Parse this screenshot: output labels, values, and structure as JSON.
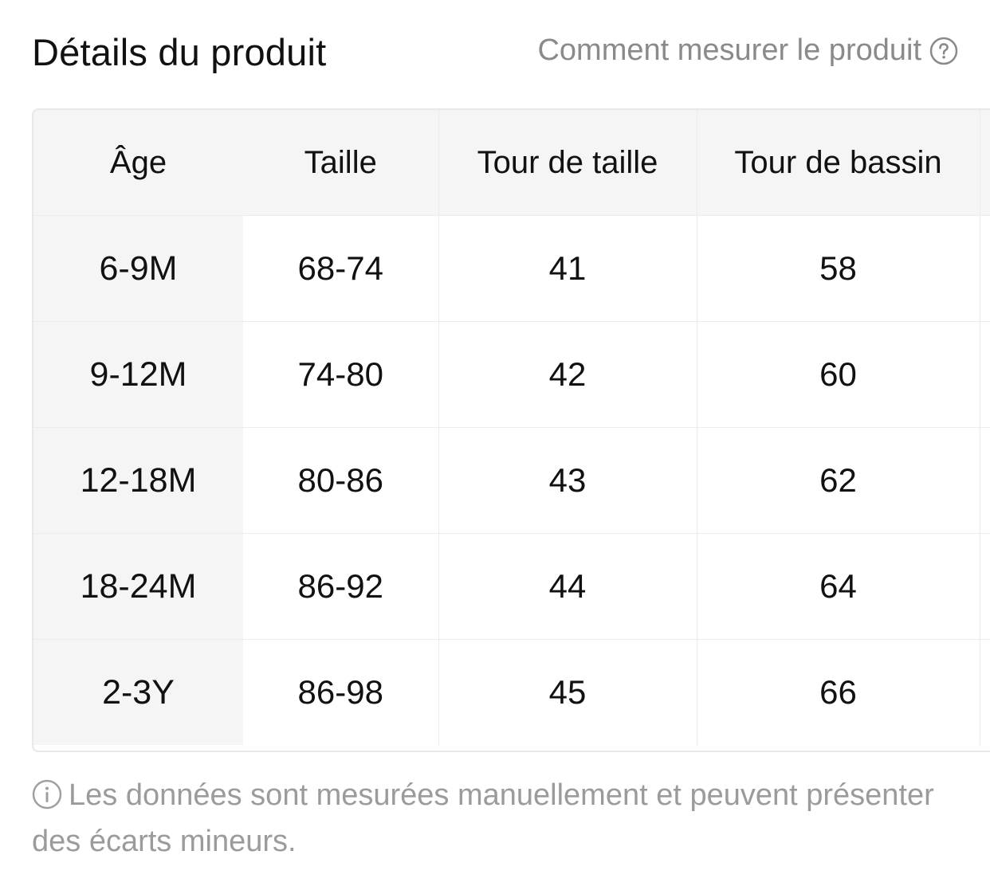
{
  "header": {
    "title": "Détails du produit",
    "measure_link": "Comment mesurer le produit",
    "measure_icon": "question-circle-icon"
  },
  "size_table": {
    "columns": [
      "Âge",
      "Taille",
      "Tour de taille",
      "Tour de bassin"
    ],
    "rows": [
      [
        "6-9M",
        "68-74",
        "41",
        "58"
      ],
      [
        "9-12M",
        "74-80",
        "42",
        "60"
      ],
      [
        "12-18M",
        "80-86",
        "43",
        "62"
      ],
      [
        "18-24M",
        "86-92",
        "44",
        "64"
      ],
      [
        "2-3Y",
        "86-98",
        "45",
        "66"
      ]
    ]
  },
  "note": {
    "icon": "info-circle-icon",
    "text": "Les données sont mesurées manuellement et peuvent présenter des écarts mineurs."
  },
  "colors": {
    "header_bg": "#f5f5f5",
    "border": "#ececec",
    "muted_text": "#8a8a8a"
  }
}
